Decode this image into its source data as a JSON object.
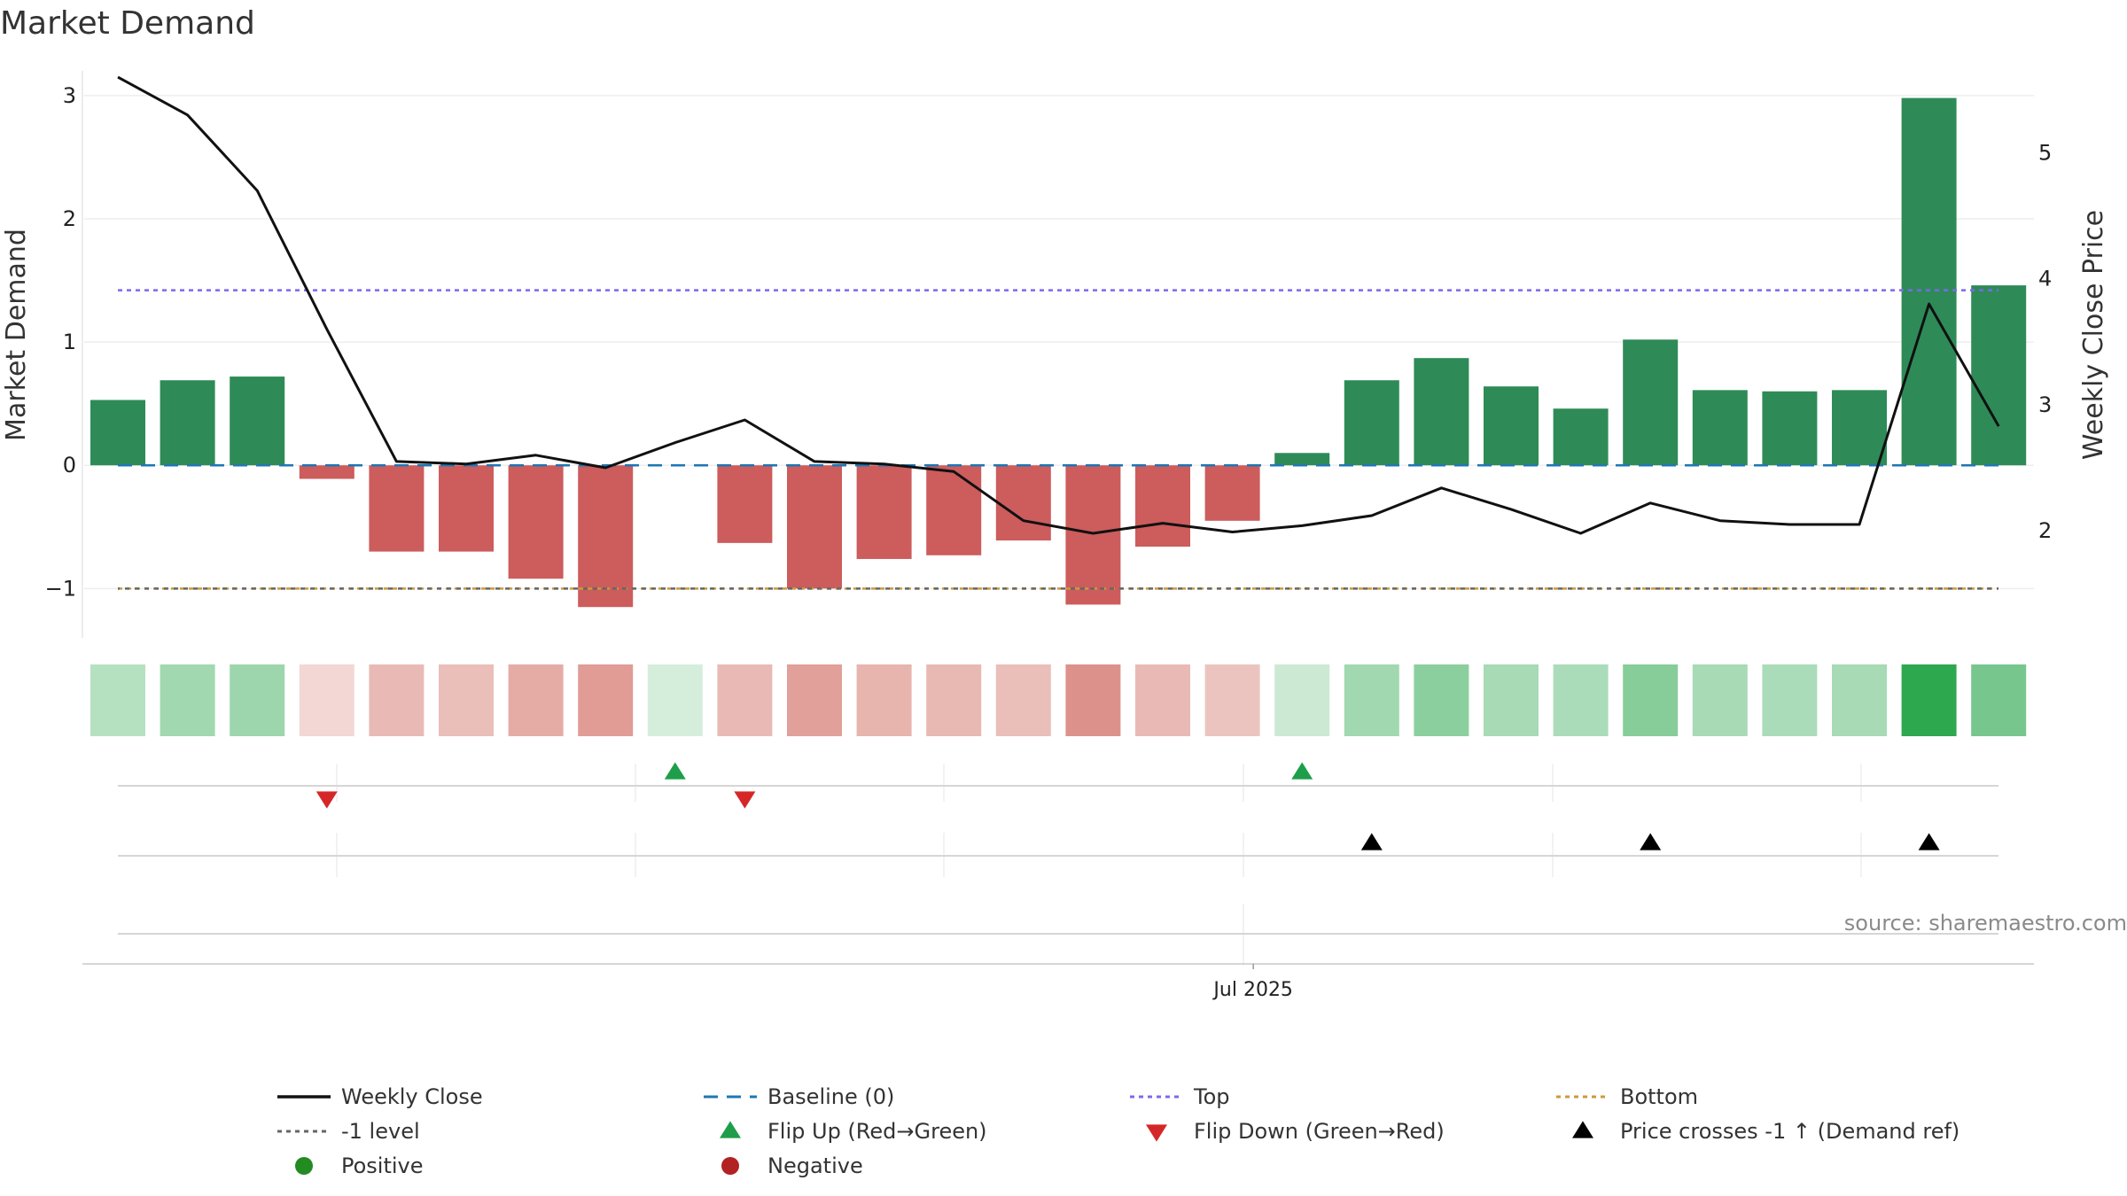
{
  "chart_data": {
    "type": "bar",
    "title": "Market Demand",
    "ylabel": "Market Demand",
    "y2label": "Weekly Close Price",
    "ylim": [
      -1.4,
      3.2
    ],
    "y2lim": [
      1.15,
      5.65
    ],
    "yticks": [
      -1,
      0,
      1,
      2,
      3
    ],
    "ytick_labels": [
      "−1",
      "0",
      "1",
      "2",
      "3"
    ],
    "y2ticks": [
      2,
      3,
      4,
      5
    ],
    "y2tick_labels": [
      "2",
      "3",
      "4",
      "5"
    ],
    "xtick_label": "Jul 2025",
    "xtick_index": 16.3,
    "series": [
      {
        "name": "Market Demand",
        "values": [
          0.53,
          0.69,
          0.72,
          -0.11,
          -0.7,
          -0.7,
          -0.92,
          -1.15,
          0.0,
          -0.63,
          -1.0,
          -0.76,
          -0.73,
          -0.61,
          -1.13,
          -0.66,
          -0.45,
          0.1,
          0.69,
          0.87,
          0.64,
          0.46,
          1.02,
          0.61,
          0.6,
          0.61,
          2.98,
          1.46
        ]
      },
      {
        "name": "Weekly Close",
        "values": [
          5.6,
          5.3,
          4.7,
          3.6,
          2.55,
          2.53,
          2.6,
          2.5,
          2.7,
          2.88,
          2.55,
          2.53,
          2.47,
          2.08,
          1.98,
          2.06,
          1.99,
          2.04,
          2.12,
          2.34,
          2.17,
          1.98,
          2.22,
          2.08,
          2.05,
          2.05,
          3.8,
          2.83
        ]
      }
    ],
    "reference_lines": {
      "baseline": 0,
      "top": 1.42,
      "bottom": -1,
      "minus_one_level": -1
    },
    "strip_intensity": [
      0.35,
      0.45,
      0.47,
      0.2,
      0.35,
      0.33,
      0.42,
      0.5,
      0.25,
      0.35,
      0.48,
      0.38,
      0.36,
      0.33,
      0.55,
      0.35,
      0.3,
      0.25,
      0.45,
      0.55,
      0.42,
      0.4,
      0.58,
      0.42,
      0.4,
      0.42,
      1.0,
      0.65
    ],
    "flip_up": [
      8,
      17
    ],
    "flip_down": [
      3,
      9
    ],
    "price_crosses": [
      18,
      22,
      26
    ],
    "colors": {
      "positive_bar": "#2e8b57",
      "negative_bar": "#cd5c5c",
      "line": "#111111",
      "baseline": "#1f77b4",
      "top": "#7b68ee",
      "bottom": "#cc9a3a",
      "minus_one": "#666666",
      "flip_up": "#1e9e4a",
      "flip_down": "#d62728",
      "crosses": "#000000",
      "positive_legend": "#228b22",
      "negative_legend": "#b22222"
    },
    "legend": [
      {
        "label": "Weekly Close",
        "kind": "solid",
        "color": "#111111"
      },
      {
        "label": "Baseline (0)",
        "kind": "dashed",
        "color": "#1f77b4"
      },
      {
        "label": "Top",
        "kind": "dotted",
        "color": "#7b68ee"
      },
      {
        "label": "Bottom",
        "kind": "dotted",
        "color": "#cc9a3a"
      },
      {
        "label": "-1 level",
        "kind": "dotted",
        "color": "#666666"
      },
      {
        "label": "Flip Up (Red→Green)",
        "kind": "tri-up",
        "color": "#1e9e4a"
      },
      {
        "label": "Flip Down (Green→Red)",
        "kind": "tri-down",
        "color": "#d62728"
      },
      {
        "label": "Price crosses -1 ↑ (Demand ref)",
        "kind": "tri-up",
        "color": "#000000"
      },
      {
        "label": "Positive",
        "kind": "dot",
        "color": "#228b22"
      },
      {
        "label": "Negative",
        "kind": "dot",
        "color": "#b22222"
      }
    ],
    "legend_placement": "bottom",
    "source": "source: sharemaestro.com"
  }
}
